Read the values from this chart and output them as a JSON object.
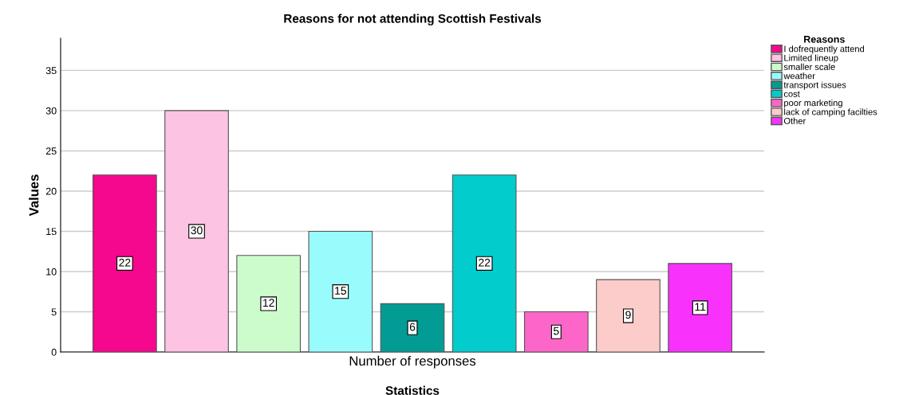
{
  "chart_data": {
    "type": "bar",
    "title": "Reasons for not attending Scottish Festivals",
    "xlabel": "Statistics",
    "ylabel": "Values",
    "legend_title": "Reasons",
    "categories": [
      "Number of responses"
    ],
    "series": [
      {
        "name": "I dofrequently attend",
        "color": "#f5078e",
        "values": [
          22
        ]
      },
      {
        "name": "Limited lineup",
        "color": "#fcc3e2",
        "values": [
          30
        ]
      },
      {
        "name": "smaller scale",
        "color": "#ccfccc",
        "values": [
          12
        ]
      },
      {
        "name": "weather",
        "color": "#99fcfc",
        "values": [
          15
        ]
      },
      {
        "name": "transport issues",
        "color": "#029c94",
        "values": [
          6
        ]
      },
      {
        "name": "cost",
        "color": "#02cccc",
        "values": [
          22
        ]
      },
      {
        "name": "poor marketing",
        "color": "#fc66c8",
        "values": [
          5
        ]
      },
      {
        "name": "lack of camping facilties",
        "color": "#fcccca",
        "values": [
          9
        ]
      },
      {
        "name": "Other",
        "color": "#f832fc",
        "values": [
          11
        ]
      }
    ],
    "ylim": [
      0,
      39
    ],
    "yticks": [
      0,
      5,
      10,
      15,
      20,
      25,
      30,
      35
    ],
    "grid": "y",
    "legend": "top right",
    "data_labels": true
  }
}
